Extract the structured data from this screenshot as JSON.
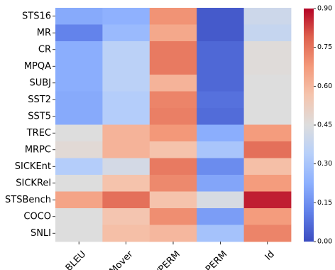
{
  "chart_data": {
    "type": "heatmap",
    "title": "",
    "xlabel": "",
    "ylabel": "",
    "columns": [
      "BLEU",
      "Mover",
      "Id/PERM",
      "PERM",
      "Id"
    ],
    "rows": [
      "STS16",
      "MR",
      "CR",
      "MPQA",
      "SUBJ",
      "SST2",
      "SST5",
      "TREC",
      "MRPC",
      "SICKEnt",
      "SICKRel",
      "STSBench",
      "COCO",
      "SNLI"
    ],
    "values": [
      [
        0.21,
        0.23,
        0.69,
        0.03,
        0.4
      ],
      [
        0.12,
        0.26,
        0.64,
        0.03,
        0.38
      ],
      [
        0.22,
        0.35,
        0.74,
        0.06,
        0.46
      ],
      [
        0.22,
        0.35,
        0.74,
        0.06,
        0.46
      ],
      [
        0.22,
        0.35,
        0.61,
        0.06,
        0.45
      ],
      [
        0.21,
        0.33,
        0.72,
        0.08,
        0.45
      ],
      [
        0.21,
        0.33,
        0.73,
        0.07,
        0.45
      ],
      [
        0.45,
        0.61,
        0.68,
        0.22,
        0.67
      ],
      [
        0.47,
        0.61,
        0.57,
        0.3,
        0.76
      ],
      [
        0.33,
        0.42,
        0.74,
        0.14,
        0.58
      ],
      [
        0.45,
        0.57,
        0.71,
        0.2,
        0.67
      ],
      [
        0.65,
        0.76,
        0.57,
        0.43,
        0.87
      ],
      [
        0.45,
        0.56,
        0.7,
        0.18,
        0.67
      ],
      [
        0.45,
        0.58,
        0.6,
        0.29,
        0.72
      ]
    ],
    "colormap": "coolwarm",
    "vmin": 0.0,
    "vmax": 0.9,
    "colorbar_ticks": [
      "0.00",
      "0.15",
      "0.30",
      "0.45",
      "0.60",
      "0.75",
      "0.90"
    ],
    "colorbar_position": "right",
    "grid": false
  }
}
